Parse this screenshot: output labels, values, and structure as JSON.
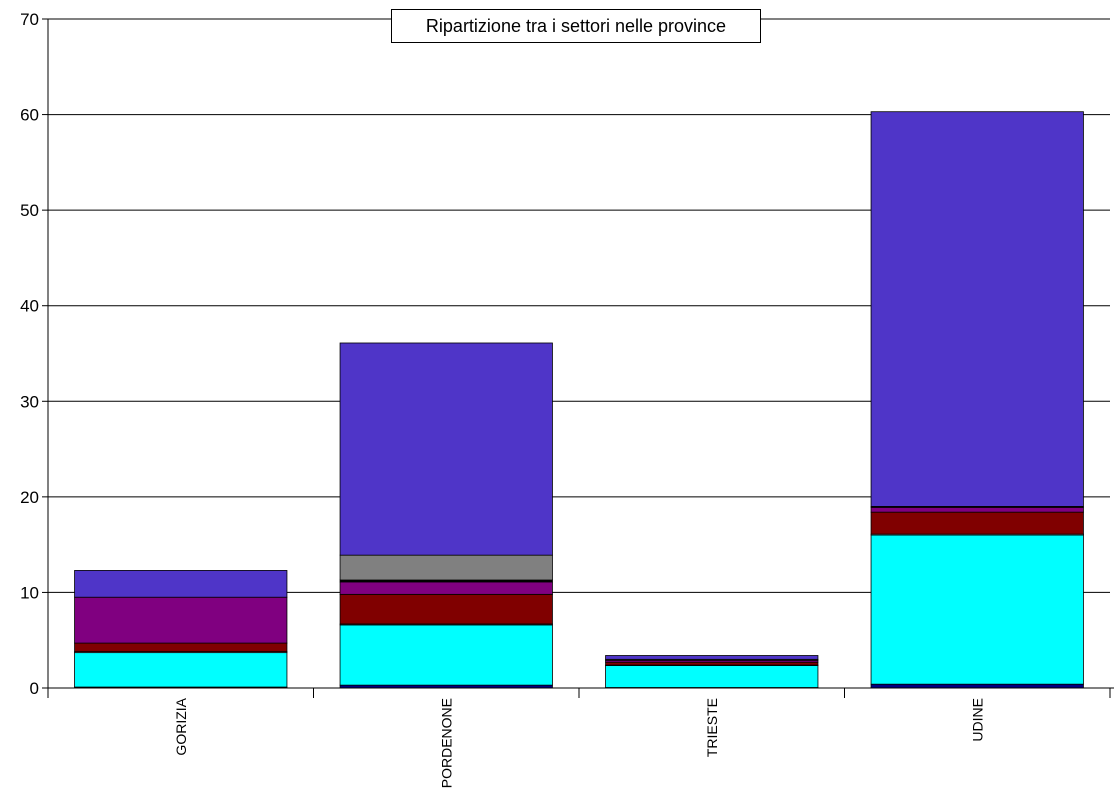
{
  "chart_data": {
    "type": "bar",
    "stacked": true,
    "title": "Ripartizione tra i settori nelle province",
    "xlabel": "",
    "ylabel": "",
    "ylim": [
      0,
      70
    ],
    "yticks": [
      "0",
      "10",
      "20",
      "30",
      "40",
      "50",
      "60",
      "70"
    ],
    "grid": true,
    "categories": [
      "GORIZIA",
      "PORDENONE",
      "TRIESTE",
      "UDINE"
    ],
    "series": [
      {
        "color": "#000080",
        "values": [
          0.1,
          0.3,
          0.05,
          0.4
        ]
      },
      {
        "color": "#00ffff",
        "values": [
          3.6,
          6.3,
          2.3,
          15.6
        ]
      },
      {
        "color": "#ffffff",
        "values": [
          0.1,
          0.1,
          0.05,
          0.1
        ]
      },
      {
        "color": "#800000",
        "values": [
          0.9,
          3.1,
          0.3,
          2.3
        ]
      },
      {
        "color": "#800080",
        "values": [
          4.8,
          1.3,
          0.2,
          0.5
        ]
      },
      {
        "color": "#000000",
        "values": [
          0.0,
          0.2,
          0.0,
          0.1
        ]
      },
      {
        "color": "#808080",
        "values": [
          0.0,
          2.6,
          0.1,
          0.0
        ]
      },
      {
        "color": "#4f35c8",
        "values": [
          2.8,
          22.2,
          0.4,
          41.3
        ]
      }
    ]
  }
}
